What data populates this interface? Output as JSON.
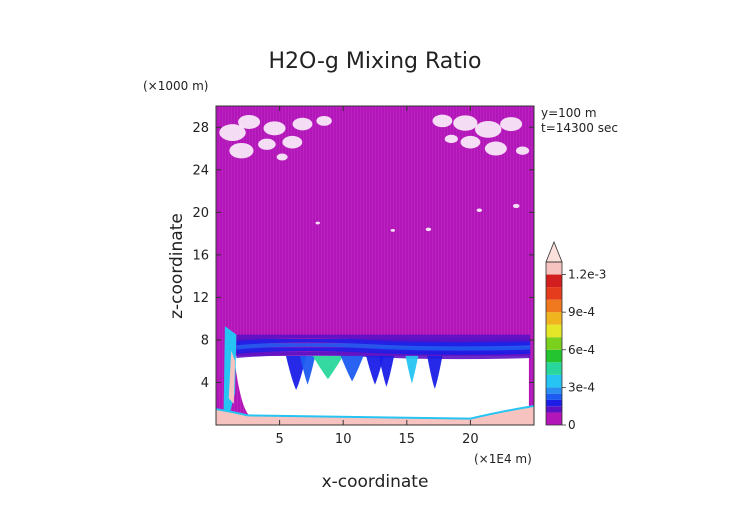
{
  "chart_data": {
    "type": "heatmap",
    "title": "H2O-g Mixing Ratio",
    "xlabel": "x-coordinate",
    "ylabel": "z-coordinate",
    "x_unit": "(×1E4 m)",
    "y_unit": "(×1000 m)",
    "annotations": [
      "y=100 m",
      "t=14300 sec"
    ],
    "xlim": [
      0,
      25
    ],
    "ylim": [
      0,
      30
    ],
    "x_ticks": [
      {
        "value": 5,
        "label": "5"
      },
      {
        "value": 10,
        "label": "10"
      },
      {
        "value": 15,
        "label": "15"
      },
      {
        "value": 20,
        "label": "20"
      }
    ],
    "y_ticks": [
      {
        "value": 4,
        "label": "4"
      },
      {
        "value": 8,
        "label": "8"
      },
      {
        "value": 12,
        "label": "12"
      },
      {
        "value": 16,
        "label": "16"
      },
      {
        "value": 20,
        "label": "20"
      },
      {
        "value": 24,
        "label": "24"
      },
      {
        "value": 28,
        "label": "28"
      }
    ],
    "colorbar": {
      "min": 0,
      "max": 0.0013,
      "labels": [
        {
          "value": 0,
          "label": "0"
        },
        {
          "value": 0.0003,
          "label": "3e-4"
        },
        {
          "value": 0.0006,
          "label": "6e-4"
        },
        {
          "value": 0.0009,
          "label": "9e-4"
        },
        {
          "value": 0.0012,
          "label": "1.2e-3"
        }
      ],
      "levels": [
        {
          "value": 0.0,
          "color": "#b316b8"
        },
        {
          "value": 0.0001,
          "color": "#5b12c4"
        },
        {
          "value": 0.00015,
          "color": "#1a1ee6"
        },
        {
          "value": 0.0002,
          "color": "#1c5cf0"
        },
        {
          "value": 0.00025,
          "color": "#2a8ef0"
        },
        {
          "value": 0.0003,
          "color": "#25c4f2"
        },
        {
          "value": 0.0004,
          "color": "#29d79c"
        },
        {
          "value": 0.0005,
          "color": "#23c42f"
        },
        {
          "value": 0.0006,
          "color": "#7bcf1d"
        },
        {
          "value": 0.0007,
          "color": "#e6e628"
        },
        {
          "value": 0.0008,
          "color": "#f0b41e"
        },
        {
          "value": 0.0009,
          "color": "#f0781e"
        },
        {
          "value": 0.001,
          "color": "#e63c1e"
        },
        {
          "value": 0.0011,
          "color": "#d21e1e"
        },
        {
          "value": 0.0012,
          "color": "#f7c3c0"
        }
      ],
      "extend": "max",
      "extend_color": "#fbe0dc"
    },
    "regions": {
      "upper_layer": {
        "z_range": [
          8,
          30
        ],
        "approx_value": 3e-05,
        "description_color": "#b316b8"
      },
      "moist_band": {
        "z_range": [
          6,
          9
        ],
        "approx_value": 0.0002
      },
      "dry_core": {
        "z_range": [
          0.6,
          6.5
        ],
        "approx_value": null
      },
      "surface_layer": {
        "z_range": [
          0,
          0.6
        ],
        "approx_value": 0.00125
      }
    }
  }
}
